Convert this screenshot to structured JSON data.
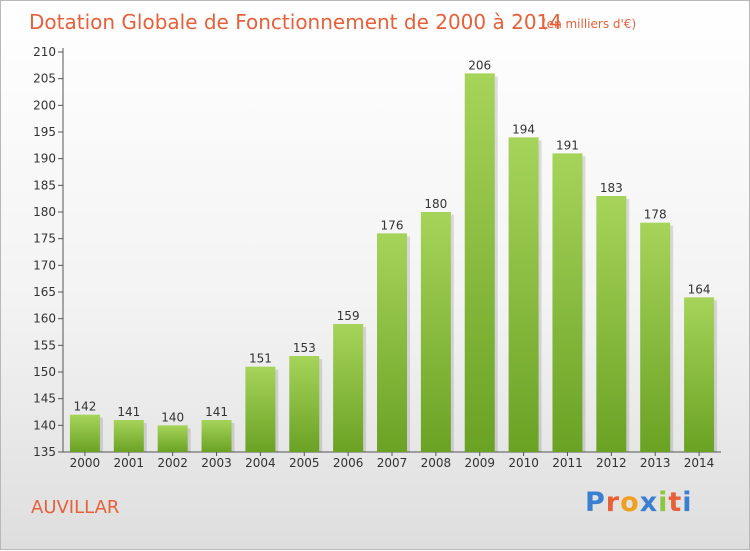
{
  "chart_data": {
    "type": "bar",
    "title": "Dotation Globale de Fonctionnement de 2000 à 2014",
    "subtitle": "(en milliers d'€)",
    "categories": [
      "2000",
      "2001",
      "2002",
      "2003",
      "2004",
      "2005",
      "2006",
      "2007",
      "2008",
      "2009",
      "2010",
      "2011",
      "2012",
      "2013",
      "2014"
    ],
    "values": [
      142,
      141,
      140,
      141,
      151,
      153,
      159,
      176,
      180,
      206,
      194,
      191,
      183,
      178,
      164
    ],
    "ylim": [
      135,
      210
    ],
    "yticks": [
      135,
      140,
      145,
      150,
      155,
      160,
      165,
      170,
      175,
      180,
      185,
      190,
      195,
      200,
      205,
      210
    ],
    "grid": false,
    "colors": {
      "bar_light": "#a6d45a",
      "bar_dark": "#6aa224",
      "title": "#e8603a"
    }
  },
  "commune": "AUVILLAR",
  "logo": {
    "text": "Proxiti",
    "letters": [
      {
        "ch": "P",
        "color": "#3a7fd0"
      },
      {
        "ch": "r",
        "color": "#e8603a"
      },
      {
        "ch": "o",
        "color": "#f0a020"
      },
      {
        "ch": "x",
        "color": "#3a7fd0"
      },
      {
        "ch": "i",
        "color": "#8cc63f"
      },
      {
        "ch": "t",
        "color": "#e8603a"
      },
      {
        "ch": "i",
        "color": "#3a7fd0"
      }
    ]
  }
}
